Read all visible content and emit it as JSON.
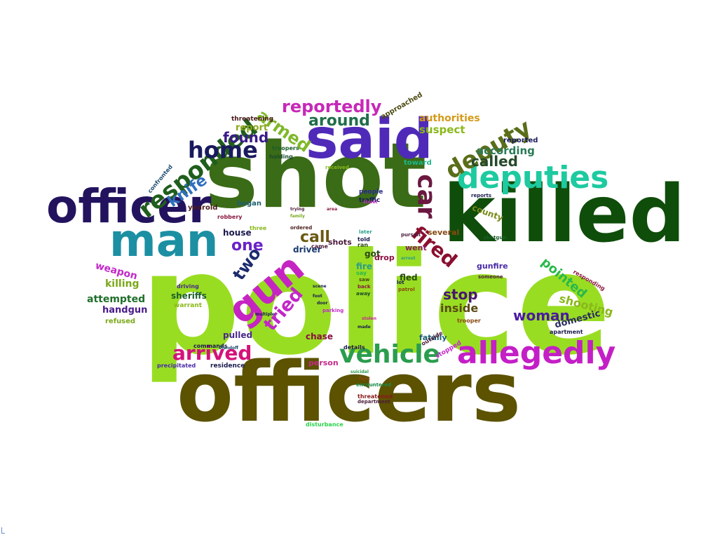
{
  "words": [
    {
      "text": "police",
      "color": "#99dd22"
    },
    {
      "text": "officers",
      "color": "#5c5200"
    },
    {
      "text": "shot",
      "color": "#3a6b16"
    },
    {
      "text": "killed",
      "color": "#0f4d0a"
    },
    {
      "text": "said",
      "color": "#4f2ab8"
    },
    {
      "text": "officer",
      "color": "#23135e"
    },
    {
      "text": "man",
      "color": "#1c8fa3"
    },
    {
      "text": "gun",
      "color": "#c624c2"
    },
    {
      "text": "allegedly",
      "color": "#c41fc6"
    },
    {
      "text": "deputies",
      "color": "#1ecaa0"
    },
    {
      "text": "vehicle",
      "color": "#2a9d4e"
    },
    {
      "text": "responded",
      "color": "#1f5e1c"
    },
    {
      "text": "deputy",
      "color": "#5a6e1a"
    },
    {
      "text": "home",
      "color": "#1a1a5e"
    },
    {
      "text": "reportedly",
      "color": "#c728b8"
    },
    {
      "text": "car",
      "color": "#6b1840"
    },
    {
      "text": "fired",
      "color": "#8a0f2e"
    },
    {
      "text": "arrived",
      "color": "#d4127a"
    },
    {
      "text": "armed",
      "color": "#7fb82a"
    },
    {
      "text": "knife",
      "color": "#2f6fbf"
    },
    {
      "text": "found",
      "color": "#3a1a8a"
    },
    {
      "text": "called",
      "color": "#244a2a"
    },
    {
      "text": "around",
      "color": "#1f6e4a"
    },
    {
      "text": "woman",
      "color": "#4a1aa0"
    },
    {
      "text": "tried",
      "color": "#c226c8"
    },
    {
      "text": "two",
      "color": "#1c2a6e"
    },
    {
      "text": "one",
      "color": "#6a22c8"
    },
    {
      "text": "call",
      "color": "#6a5a12"
    },
    {
      "text": "stop",
      "color": "#4a1670"
    },
    {
      "text": "pointed",
      "color": "#2ab84a"
    },
    {
      "text": "shooting",
      "color": "#8ab81a"
    },
    {
      "text": "according",
      "color": "#2a7a5a"
    },
    {
      "text": "suspect",
      "color": "#8ab81a"
    },
    {
      "text": "authorities",
      "color": "#d49a1a"
    },
    {
      "text": "inside",
      "color": "#5a4a12"
    },
    {
      "text": "killing",
      "color": "#7aa81a"
    },
    {
      "text": "attempted",
      "color": "#1f6e2a"
    },
    {
      "text": "handgun",
      "color": "#4a1a8a"
    },
    {
      "text": "weapon",
      "color": "#c22ac8"
    },
    {
      "text": "report",
      "color": "#8aa81a"
    },
    {
      "text": "county",
      "color": "#7a8a1a"
    },
    {
      "text": "domestic",
      "color": "#2a2a5e"
    },
    {
      "text": "sheriffs",
      "color": "#1a5e2a"
    },
    {
      "text": "house",
      "color": "#1a1a4e"
    },
    {
      "text": "driver",
      "color": "#1a3a6e"
    },
    {
      "text": "pulled",
      "color": "#4a2a8a"
    },
    {
      "text": "chase",
      "color": "#8a0f3e"
    },
    {
      "text": "person",
      "color": "#c22a8a"
    },
    {
      "text": "fatally",
      "color": "#1a5e6e"
    },
    {
      "text": "fled",
      "color": "#2a4a12"
    },
    {
      "text": "got",
      "color": "#2a4a12"
    },
    {
      "text": "fire",
      "color": "#2a9d8a"
    },
    {
      "text": "drop",
      "color": "#8a0f3e"
    },
    {
      "text": "went",
      "color": "#8a1a5e"
    },
    {
      "text": "several",
      "color": "#8a4a12"
    },
    {
      "text": "gunfire",
      "color": "#4a2aa8"
    },
    {
      "text": "shots",
      "color": "#4a1a3a"
    },
    {
      "text": "began",
      "color": "#1f5e6e"
    },
    {
      "text": "traffic",
      "color": "#1a1a5e"
    },
    {
      "text": "people",
      "color": "#2a2a8a"
    },
    {
      "text": "toward",
      "color": "#1ab88a"
    },
    {
      "text": "reported",
      "color": "#1a1a5e"
    },
    {
      "text": "approached",
      "color": "#4a4a12"
    },
    {
      "text": "threatening",
      "color": "#4a1a1a"
    },
    {
      "text": "holding",
      "color": "#1a4a2a"
    },
    {
      "text": "troopers",
      "color": "#1a5e2a"
    },
    {
      "text": "yearold",
      "color": "#4a1a1a"
    },
    {
      "text": "robbery",
      "color": "#8a1a3e"
    },
    {
      "text": "confronted",
      "color": "#1a4a6e"
    },
    {
      "text": "driving",
      "color": "#4a2a8a"
    },
    {
      "text": "warrant",
      "color": "#8ab81a"
    },
    {
      "text": "refused",
      "color": "#7aa81a"
    },
    {
      "text": "commands",
      "color": "#1a1a4e"
    },
    {
      "text": "residence",
      "color": "#1a1a4e"
    },
    {
      "text": "precipitated",
      "color": "#4a2aa8"
    },
    {
      "text": "details",
      "color": "#1a1a4e"
    },
    {
      "text": "outside",
      "color": "#4a1a3a"
    },
    {
      "text": "stopped",
      "color": "#c22ac8"
    },
    {
      "text": "trooper",
      "color": "#8a4a12"
    },
    {
      "text": "apartment",
      "color": "#1a1a4e"
    },
    {
      "text": "responding",
      "color": "#8a1a3e"
    },
    {
      "text": "threatened",
      "color": "#8a1a1a"
    },
    {
      "text": "encountered",
      "color": "#1a8a4a"
    },
    {
      "text": "disturbance",
      "color": "#2ad44a"
    },
    {
      "text": "department",
      "color": "#4a1a3a"
    },
    {
      "text": "three",
      "color": "#8ab81a"
    },
    {
      "text": "came",
      "color": "#4a1a3a"
    },
    {
      "text": "ran",
      "color": "#2a4a12"
    },
    {
      "text": "told",
      "color": "#1a1a4e"
    },
    {
      "text": "later",
      "color": "#2a9d8a"
    },
    {
      "text": "saw",
      "color": "#4a4a12"
    },
    {
      "text": "lot",
      "color": "#1a1a4e"
    },
    {
      "text": "away",
      "color": "#1a4a2a"
    },
    {
      "text": "back",
      "color": "#8a1a3e"
    },
    {
      "text": "say",
      "color": "#2ab84a"
    },
    {
      "text": "received",
      "color": "#8ab81a"
    },
    {
      "text": "ordered",
      "color": "#4a1a1a"
    },
    {
      "text": "parking",
      "color": "#c22ac8"
    },
    {
      "text": "patrol",
      "color": "#8a4a12"
    },
    {
      "text": "pursuit",
      "color": "#4a1a3a"
    },
    {
      "text": "someone",
      "color": "#4a1a3a"
    },
    {
      "text": "shotgun",
      "color": "#1a5e2a"
    },
    {
      "text": "reports",
      "color": "#1a1a4e"
    },
    {
      "text": "standoff",
      "color": "#1a4a6e"
    },
    {
      "text": "multiple",
      "color": "#1a1a4e"
    },
    {
      "text": "scene",
      "color": "#1a1a4e"
    },
    {
      "text": "foot",
      "color": "#1a1a4e"
    },
    {
      "text": "door",
      "color": "#1a1a4e"
    },
    {
      "text": "made",
      "color": "#1a1a4e"
    },
    {
      "text": "street",
      "color": "#c22ac8"
    },
    {
      "text": "area",
      "color": "#8a1a3e"
    },
    {
      "text": "family",
      "color": "#7aa81a"
    },
    {
      "text": "trying",
      "color": "#4a1a3a"
    },
    {
      "text": "stolen",
      "color": "#c22a8a"
    },
    {
      "text": "fight",
      "color": "#8a4a12"
    },
    {
      "text": "suicidal",
      "color": "#2a9d4e"
    },
    {
      "text": "arrest",
      "color": "#2a9d8a"
    }
  ]
}
